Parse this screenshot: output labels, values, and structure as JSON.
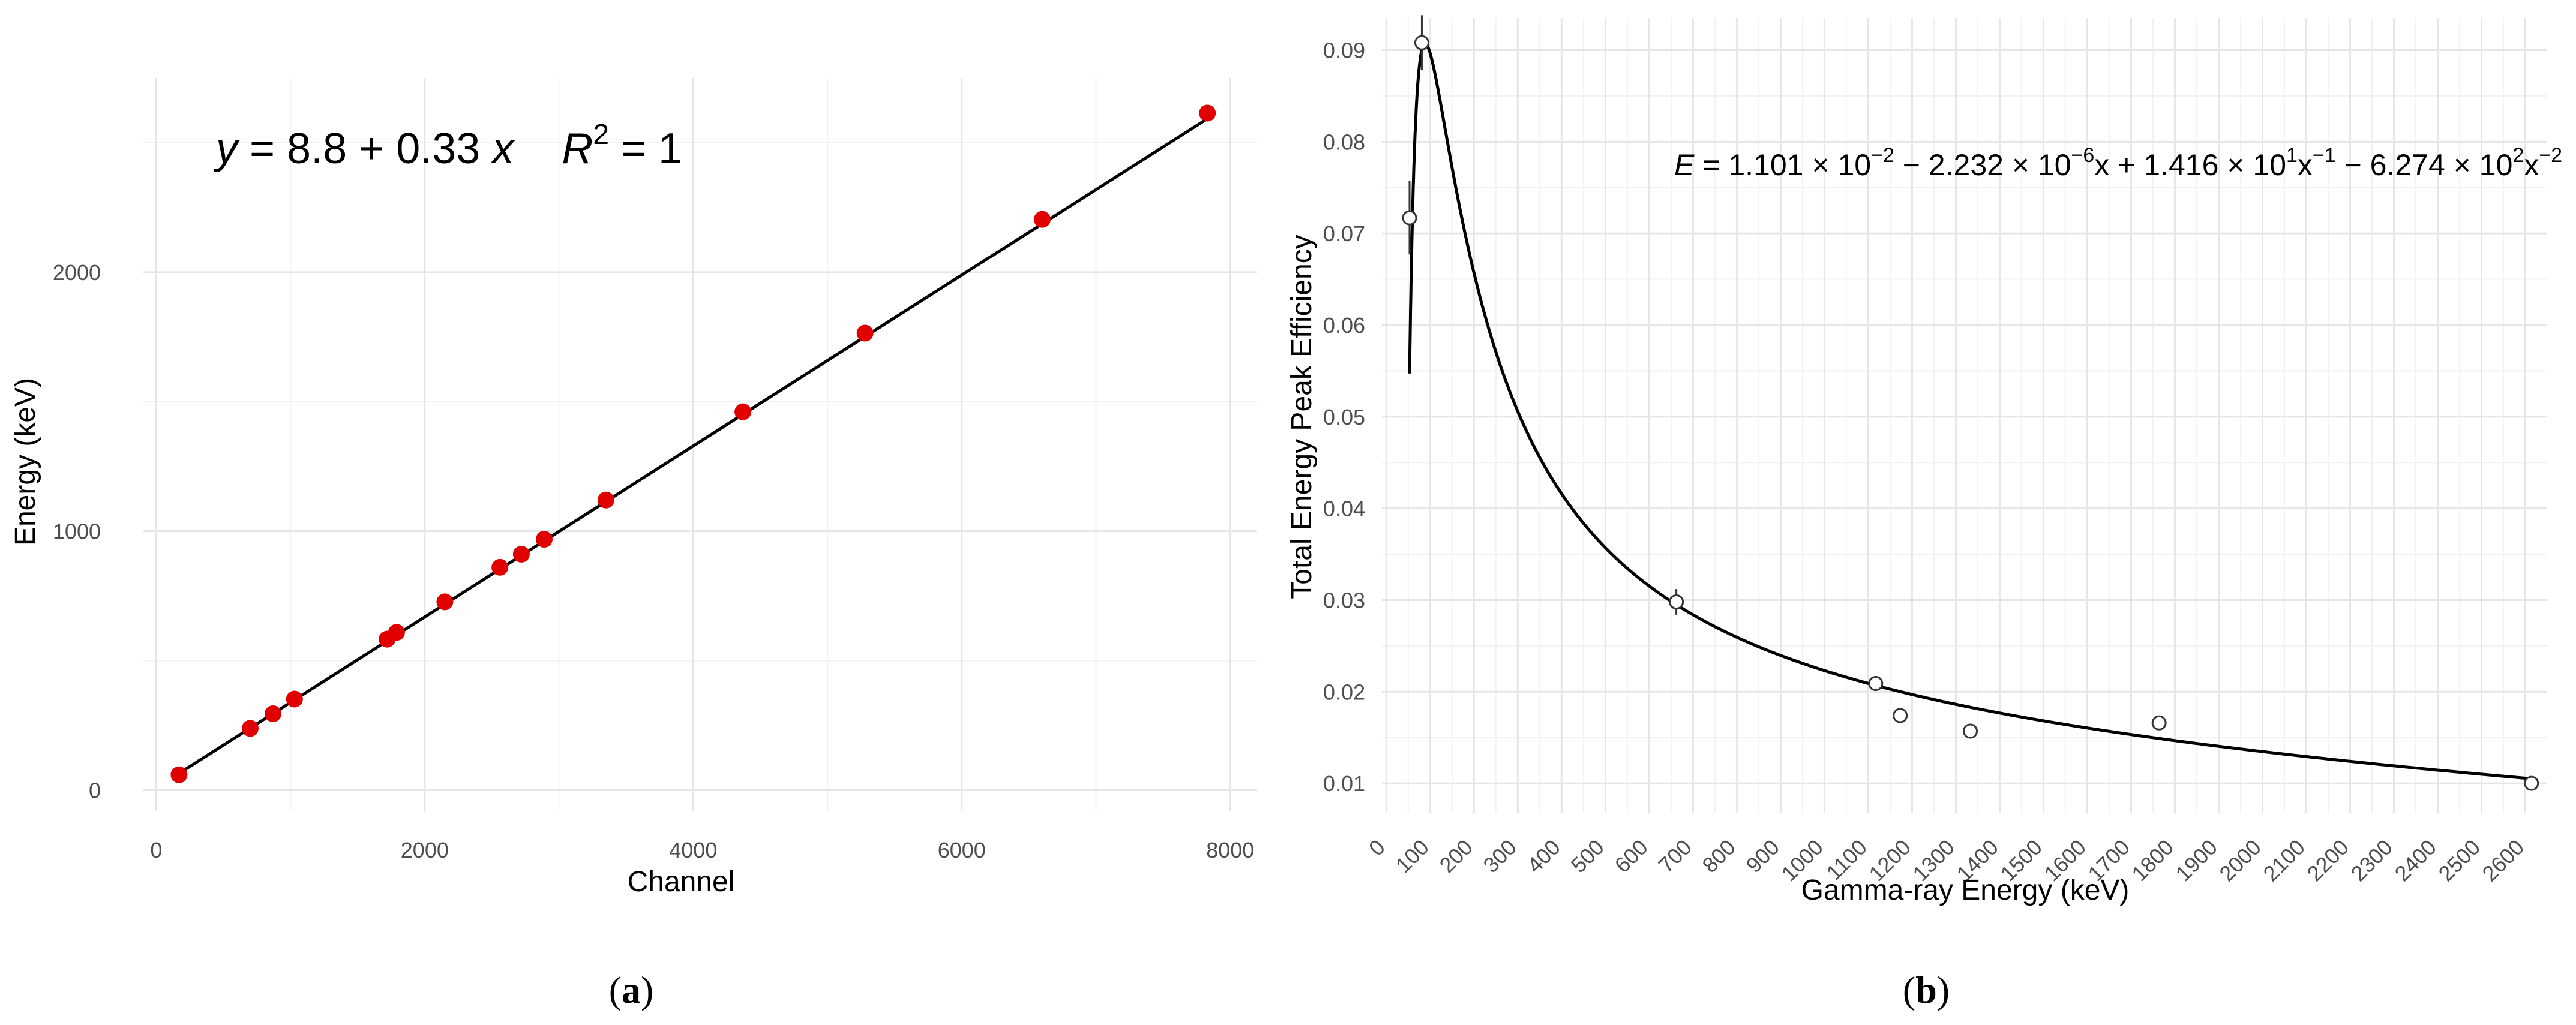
{
  "colors": {
    "point_a": "#e00000",
    "line": "#000000",
    "grid_major": "#e6e6e6",
    "grid_minor": "#f2f2f2"
  },
  "panel_a": {
    "label_paren_open": "(",
    "label_letter": "a",
    "label_paren_close": ")",
    "equation": {
      "y": "y",
      "eq_sign": " = 8.8 + 0.33 ",
      "x": "x",
      "r2_r": "R",
      "r2_exp": "2",
      "r2_rest": " = 1"
    }
  },
  "panel_b": {
    "label_paren_open": "(",
    "label_letter": "b",
    "label_paren_close": ")",
    "equation": {
      "e": "E",
      "p1": " = 1.101 × 10",
      "e1": "−2",
      "p2": " − 2.232 × 10",
      "e2": "−6",
      "p3": "x + 1.416 × 10",
      "e3": "1",
      "p4": "x",
      "e4": "−1",
      "p5": " − 6.274 × 10",
      "e5": "2",
      "p6": "x",
      "e6": "−2"
    }
  },
  "chart_data": [
    {
      "type": "scatter",
      "xlabel": "Channel",
      "ylabel": "Energy (keV)",
      "xlim": [
        -100,
        8200
      ],
      "ylim": [
        -80,
        2750
      ],
      "xticks": [
        0,
        2000,
        4000,
        6000,
        8000
      ],
      "yticks": [
        0,
        1000,
        2000
      ],
      "grid": true,
      "fit": {
        "intercept": 8.8,
        "slope": 0.33,
        "r2": 1,
        "x_range": [
          170,
          7830
        ]
      },
      "points": [
        {
          "x": 170,
          "y": 59.5
        },
        {
          "x": 700,
          "y": 238.6
        },
        {
          "x": 870,
          "y": 295.2
        },
        {
          "x": 1030,
          "y": 351.9
        },
        {
          "x": 1720,
          "y": 583.2
        },
        {
          "x": 1790,
          "y": 609.3
        },
        {
          "x": 2150,
          "y": 727.3
        },
        {
          "x": 2560,
          "y": 860.6
        },
        {
          "x": 2720,
          "y": 911.2
        },
        {
          "x": 2890,
          "y": 969.0
        },
        {
          "x": 3350,
          "y": 1120.3
        },
        {
          "x": 4370,
          "y": 1460.8
        },
        {
          "x": 5280,
          "y": 1764.5
        },
        {
          "x": 6600,
          "y": 2204.1
        },
        {
          "x": 7830,
          "y": 2614.5
        }
      ]
    },
    {
      "type": "scatter",
      "xlabel": "Gamma-ray Energy (keV)",
      "ylabel": "Total Energy Peak Efficiency",
      "xlim": [
        -10,
        2650
      ],
      "ylim": [
        0.0068,
        0.0935
      ],
      "xticks": [
        0,
        100,
        200,
        300,
        400,
        500,
        600,
        700,
        800,
        900,
        1000,
        1100,
        1200,
        1300,
        1400,
        1500,
        1600,
        1700,
        1800,
        1900,
        2000,
        2100,
        2200,
        2300,
        2400,
        2500,
        2600
      ],
      "yticks": [
        0.01,
        0.02,
        0.03,
        0.04,
        0.05,
        0.06,
        0.07,
        0.08,
        0.09
      ],
      "grid": true,
      "fit": {
        "a": 0.01101,
        "b": -2.232e-06,
        "c": 14.16,
        "d": -627.4,
        "x_range": [
          53,
          2614
        ]
      },
      "points": [
        {
          "x": 53,
          "y": 0.0717,
          "err": 0.004
        },
        {
          "x": 81,
          "y": 0.0908,
          "err": 0.003
        },
        {
          "x": 662,
          "y": 0.0298,
          "err": 0.0014
        },
        {
          "x": 1117,
          "y": 0.0209,
          "err": 0.0005
        },
        {
          "x": 1173,
          "y": 0.0174,
          "err": 0.0006
        },
        {
          "x": 1333,
          "y": 0.0157,
          "err": 0.0006
        },
        {
          "x": 1764,
          "y": 0.0166,
          "err": 0.0003
        },
        {
          "x": 2614,
          "y": 0.01,
          "err": 0.0002
        }
      ]
    }
  ]
}
